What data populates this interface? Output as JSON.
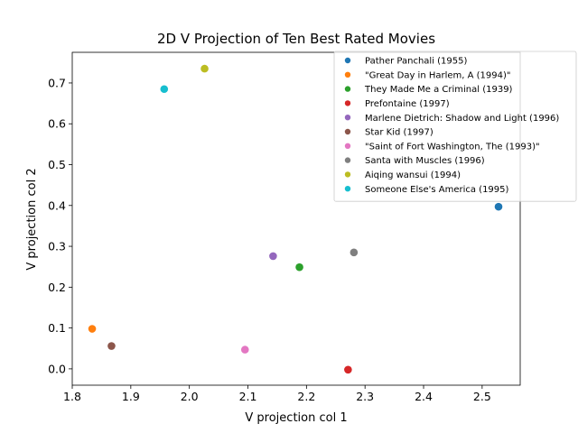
{
  "chart_data": {
    "type": "scatter",
    "title": "2D V Projection of Ten Best Rated Movies",
    "xlabel": "V projection col 1",
    "ylabel": "V projection col 2",
    "xlim": [
      1.8,
      2.565
    ],
    "ylim": [
      -0.04,
      0.775
    ],
    "xticks": [
      "1.8",
      "1.9",
      "2.0",
      "2.1",
      "2.2",
      "2.3",
      "2.4",
      "2.5"
    ],
    "yticks": [
      "0.0",
      "0.1",
      "0.2",
      "0.3",
      "0.4",
      "0.5",
      "0.6",
      "0.7"
    ],
    "grid": false,
    "legend_position": "top-right",
    "series": [
      {
        "name": "Pather Panchali (1955)",
        "color": "#1f77b4",
        "x": 2.528,
        "y": 0.397
      },
      {
        "name": "\"Great Day in Harlem, A (1994)\"",
        "color": "#ff7f0e",
        "x": 1.834,
        "y": 0.098
      },
      {
        "name": "They Made Me a Criminal (1939)",
        "color": "#2ca02c",
        "x": 2.188,
        "y": 0.249
      },
      {
        "name": "Prefontaine (1997)",
        "color": "#d62728",
        "x": 2.271,
        "y": -0.002
      },
      {
        "name": "Marlene Dietrich: Shadow and Light (1996)",
        "color": "#9467bd",
        "x": 2.143,
        "y": 0.276
      },
      {
        "name": "Star Kid (1997)",
        "color": "#8c564b",
        "x": 1.867,
        "y": 0.056
      },
      {
        "name": "\"Saint of Fort Washington, The (1993)\"",
        "color": "#e377c2",
        "x": 2.095,
        "y": 0.047
      },
      {
        "name": "Santa with Muscles (1996)",
        "color": "#7f7f7f",
        "x": 2.281,
        "y": 0.285
      },
      {
        "name": "Aiqing wansui (1994)",
        "color": "#bcbd22",
        "x": 2.026,
        "y": 0.735
      },
      {
        "name": "Someone Else's America (1995)",
        "color": "#17becf",
        "x": 1.957,
        "y": 0.685
      }
    ]
  }
}
